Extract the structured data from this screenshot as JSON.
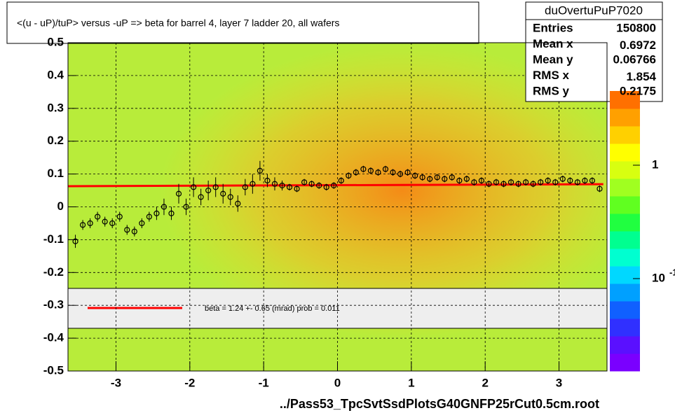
{
  "chart_data": {
    "type": "profile",
    "title": "<(u - uP)/tuP> versus  -uP => beta for barrel 4, layer 7 ladder 20, all wafers",
    "x_label": "../Pass53_TpcSvtSsdPlotsG40GNFP25rCut0.5cm.root",
    "xlim": [
      -3.65,
      3.65
    ],
    "ylim": [
      -0.5,
      0.5
    ],
    "xticks": [
      -3,
      -2,
      -1,
      0,
      1,
      2,
      3
    ],
    "yticks": [
      -0.5,
      -0.4,
      -0.3,
      -0.2,
      -0.1,
      0,
      0.1,
      0.2,
      0.3,
      0.4,
      0.5
    ],
    "grid": true,
    "series": [
      {
        "color": "#000000",
        "x": [
          -3.55,
          -3.45,
          -3.35,
          -3.25,
          -3.15,
          -3.05,
          -2.95,
          -2.85,
          -2.75,
          -2.65,
          -2.55,
          -2.45,
          -2.35,
          -2.25,
          -2.15,
          -2.05,
          -1.95,
          -1.85,
          -1.75,
          -1.65,
          -1.55,
          -1.45,
          -1.35,
          -1.25,
          -1.15,
          -1.05,
          -0.95,
          -0.85,
          -0.75,
          -0.65,
          -0.55,
          -0.45,
          -0.35,
          -0.25,
          -0.15,
          -0.05,
          0.05,
          0.15,
          0.25,
          0.35,
          0.45,
          0.55,
          0.65,
          0.75,
          0.85,
          0.95,
          1.05,
          1.15,
          1.25,
          1.35,
          1.45,
          1.55,
          1.65,
          1.75,
          1.85,
          1.95,
          2.05,
          2.15,
          2.25,
          2.35,
          2.45,
          2.55,
          2.65,
          2.75,
          2.85,
          2.95,
          3.05,
          3.15,
          3.25,
          3.35,
          3.45,
          3.55
        ],
        "values": [
          -0.105,
          -0.055,
          -0.05,
          -0.03,
          -0.045,
          -0.05,
          -0.03,
          -0.07,
          -0.075,
          -0.05,
          -0.03,
          -0.02,
          0.0,
          -0.02,
          0.04,
          0.0,
          0.06,
          0.03,
          0.05,
          0.06,
          0.04,
          0.03,
          0.01,
          0.06,
          0.07,
          0.11,
          0.08,
          0.07,
          0.065,
          0.06,
          0.055,
          0.075,
          0.07,
          0.065,
          0.06,
          0.065,
          0.08,
          0.095,
          0.105,
          0.115,
          0.11,
          0.105,
          0.115,
          0.105,
          0.1,
          0.105,
          0.095,
          0.09,
          0.085,
          0.09,
          0.085,
          0.09,
          0.08,
          0.085,
          0.075,
          0.08,
          0.07,
          0.075,
          0.07,
          0.075,
          0.07,
          0.075,
          0.07,
          0.075,
          0.08,
          0.075,
          0.085,
          0.08,
          0.075,
          0.08,
          0.08,
          0.055
        ],
        "errors": [
          0.02,
          0.015,
          0.015,
          0.015,
          0.015,
          0.015,
          0.015,
          0.015,
          0.015,
          0.015,
          0.015,
          0.02,
          0.025,
          0.02,
          0.03,
          0.025,
          0.03,
          0.025,
          0.03,
          0.03,
          0.03,
          0.025,
          0.025,
          0.025,
          0.03,
          0.03,
          0.02,
          0.02,
          0.015,
          0.01,
          0.01,
          0.01,
          0.01,
          0.01,
          0.01,
          0.01,
          0.01,
          0.01,
          0.01,
          0.01,
          0.01,
          0.01,
          0.01,
          0.01,
          0.01,
          0.01,
          0.01,
          0.01,
          0.01,
          0.01,
          0.01,
          0.01,
          0.01,
          0.01,
          0.01,
          0.01,
          0.01,
          0.01,
          0.01,
          0.01,
          0.01,
          0.01,
          0.01,
          0.01,
          0.01,
          0.01,
          0.01,
          0.01,
          0.01,
          0.01,
          0.01,
          0.01
        ]
      }
    ],
    "fit": {
      "color": "#ff0000",
      "x": [
        -3.65,
        3.6
      ],
      "values": [
        0.063,
        0.069
      ]
    },
    "legend_text": "beta =    1.24 +-  0.65 (mrad) prob = 0.011",
    "stats": {
      "name": "duOvertuPuP7020",
      "rows": [
        [
          "Entries",
          "150800"
        ],
        [
          "Mean x",
          "0.6972"
        ],
        [
          "Mean y",
          "0.06766"
        ],
        [
          "RMS x",
          "1.854"
        ],
        [
          "RMS y",
          "0.2175"
        ]
      ]
    },
    "palette": [
      "#7a00ff",
      "#5a10ff",
      "#3030ff",
      "#1060ff",
      "#00a0ff",
      "#00d8ff",
      "#00ffd0",
      "#00ff90",
      "#20ff40",
      "#60ff20",
      "#a0ff20",
      "#d8ff10",
      "#ffff00",
      "#ffd000",
      "#ffa000",
      "#ff7000"
    ],
    "zticks": [
      {
        "value": 1,
        "label": "1"
      },
      {
        "value": 0.1,
        "label": "10",
        "exponent": "-1"
      }
    ]
  }
}
